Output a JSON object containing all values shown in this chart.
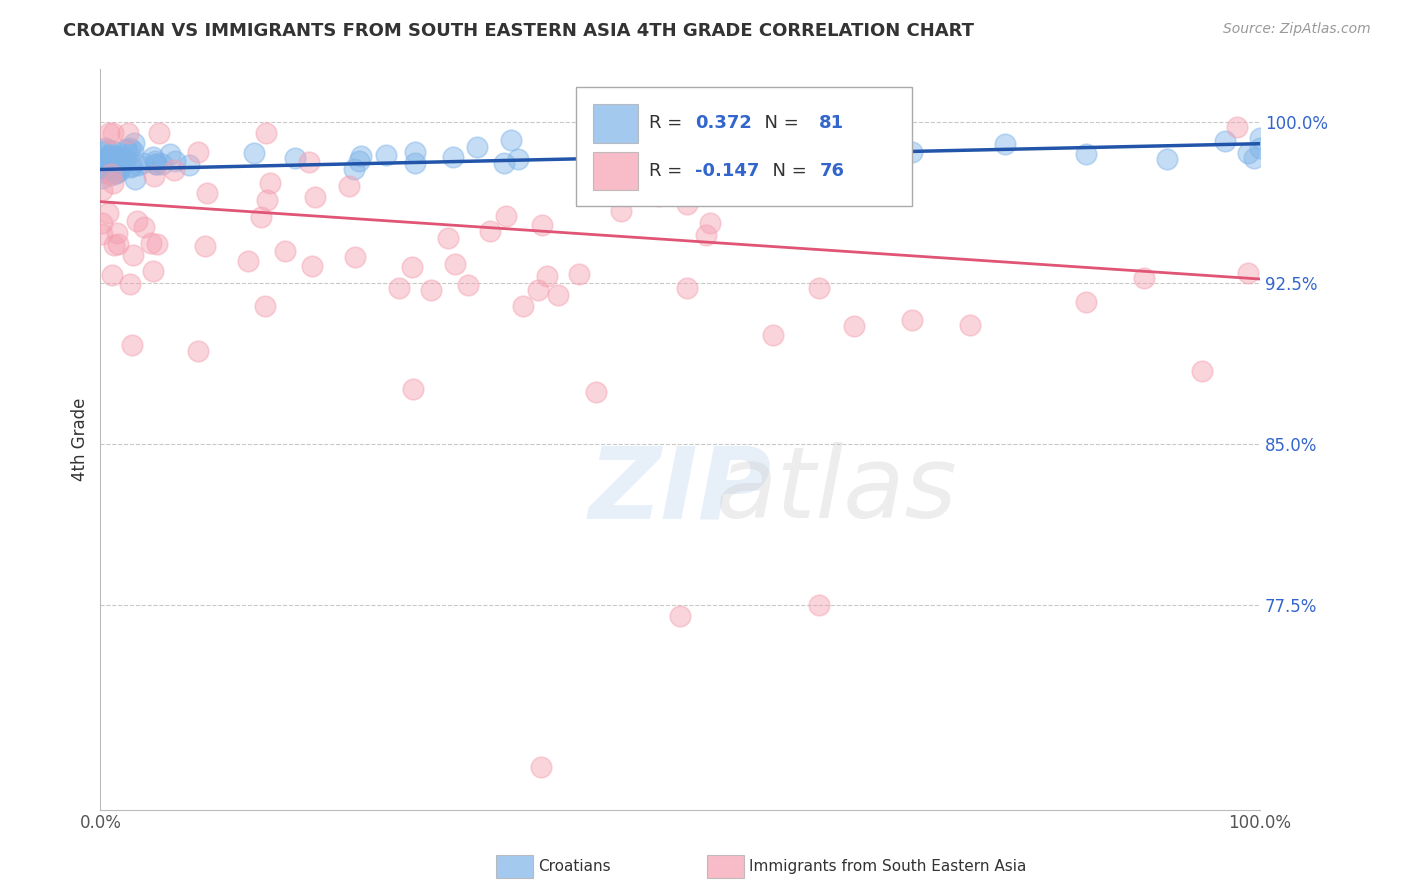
{
  "title": "CROATIAN VS IMMIGRANTS FROM SOUTH EASTERN ASIA 4TH GRADE CORRELATION CHART",
  "source": "Source: ZipAtlas.com",
  "ylabel": "4th Grade",
  "ylim": [
    0.68,
    1.025
  ],
  "xlim": [
    0.0,
    1.0
  ],
  "blue_color": "#7EB3E8",
  "pink_color": "#F4A0B0",
  "blue_line_color": "#2255AA",
  "pink_line_color": "#E05575",
  "R_blue": 0.372,
  "N_blue": 81,
  "R_pink": -0.147,
  "N_pink": 76,
  "right_yticks": [
    0.775,
    0.85,
    0.925,
    1.0
  ],
  "right_ytick_labels": [
    "77.5%",
    "85.0%",
    "92.5%",
    "100.0%"
  ],
  "grid_lines": [
    0.775,
    0.85,
    0.925,
    1.0
  ],
  "blue_line": [
    0.978,
    0.99
  ],
  "pink_line": [
    0.963,
    0.927
  ],
  "background_color": "#FFFFFF",
  "grid_color": "#BBBBBB"
}
